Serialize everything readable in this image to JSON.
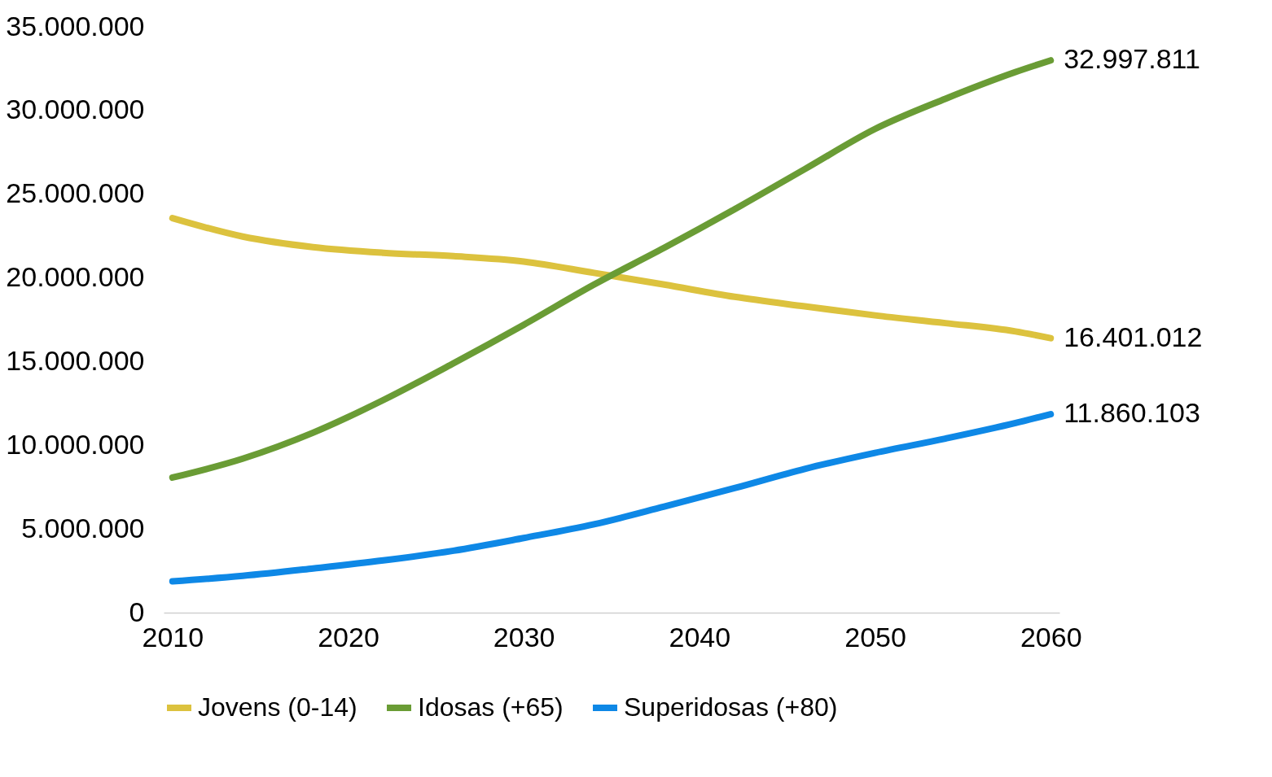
{
  "chart_data": {
    "type": "line",
    "x": [
      2010,
      2014,
      2018,
      2022,
      2026,
      2030,
      2034,
      2038,
      2042,
      2046,
      2050,
      2054,
      2058,
      2060
    ],
    "series": [
      {
        "name": "Jovens (0-14)",
        "color": "#dcc23e",
        "values": [
          23570000.0,
          22470000.0,
          21840000.0,
          21500000.0,
          21300000.0,
          20980000.0,
          20300000.0,
          19600000.0,
          18870000.0,
          18300000.0,
          17760000.0,
          17300000.0,
          16800000.0,
          16401012
        ],
        "value_labels": [
          null,
          null,
          null,
          null,
          null,
          null,
          null,
          null,
          null,
          null,
          null,
          null,
          null,
          "16.401.012"
        ]
      },
      {
        "name": "Idosas (+65)",
        "color": "#6a9c35",
        "values": [
          8070000.0,
          9200000.0,
          10750000.0,
          12700000.0,
          14900000.0,
          17200000.0,
          19600000.0,
          21800000.0,
          24100000.0,
          26500000.0,
          28900000.0,
          30700000.0,
          32300000.0,
          32997811
        ],
        "value_labels": [
          null,
          null,
          null,
          null,
          null,
          null,
          null,
          null,
          null,
          null,
          null,
          null,
          null,
          "32.997.811"
        ]
      },
      {
        "name": "Superidosas (+80)",
        "color": "#0e88e6",
        "values": [
          1870000.0,
          2200000.0,
          2640000.0,
          3120000.0,
          3700000.0,
          4460000.0,
          5280000.0,
          6340000.0,
          7440000.0,
          8590000.0,
          9550000.0,
          10400000.0,
          11330000.0,
          11860103
        ],
        "value_labels": [
          null,
          null,
          null,
          null,
          null,
          null,
          null,
          null,
          null,
          null,
          null,
          null,
          null,
          "11.860.103"
        ]
      }
    ],
    "xlim": [
      2009.5,
      2060.5
    ],
    "xticks": [
      2010,
      2020,
      2030,
      2040,
      2050,
      2060
    ],
    "ylim": [
      0,
      35000000
    ],
    "yticks": [
      0,
      {
        "value": 5000000,
        "label": "5.000.000"
      },
      {
        "value": 10000000,
        "label": "10.000.000"
      },
      {
        "value": 15000000,
        "label": "15.000.000"
      },
      {
        "value": 20000000,
        "label": "20.000.000"
      },
      {
        "value": 25000000,
        "label": "25.000.000"
      },
      {
        "value": 30000000,
        "label": "30.000.000"
      },
      {
        "value": 35000000,
        "label": "35.000.000"
      }
    ],
    "grid": false,
    "legend": "bottom",
    "line_style": "solid"
  }
}
